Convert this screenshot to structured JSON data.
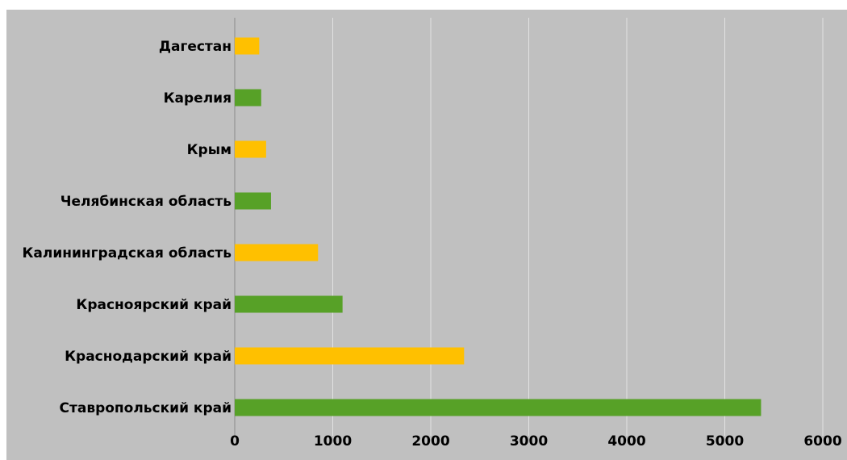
{
  "chart_data": {
    "type": "bar",
    "orientation": "horizontal",
    "categories": [
      "Дагестан",
      "Карелия",
      "Крым",
      "Челябинская область",
      "Калининградская область",
      "Красноярский край",
      "Краснодарский край",
      "Ставропольский край"
    ],
    "values": [
      250,
      270,
      320,
      370,
      850,
      1100,
      2340,
      5370
    ],
    "bar_colors": [
      "#ffc000",
      "#57a127",
      "#ffc000",
      "#57a127",
      "#ffc000",
      "#57a127",
      "#ffc000",
      "#57a127"
    ],
    "xlim": [
      0,
      6000
    ],
    "x_ticks": [
      0,
      1000,
      2000,
      3000,
      4000,
      5000,
      6000
    ],
    "title": "",
    "xlabel": "",
    "ylabel": "",
    "grid": true,
    "legend": "none",
    "background_color": "#c0c0c0",
    "gridline_color": "#e2e2e2"
  }
}
